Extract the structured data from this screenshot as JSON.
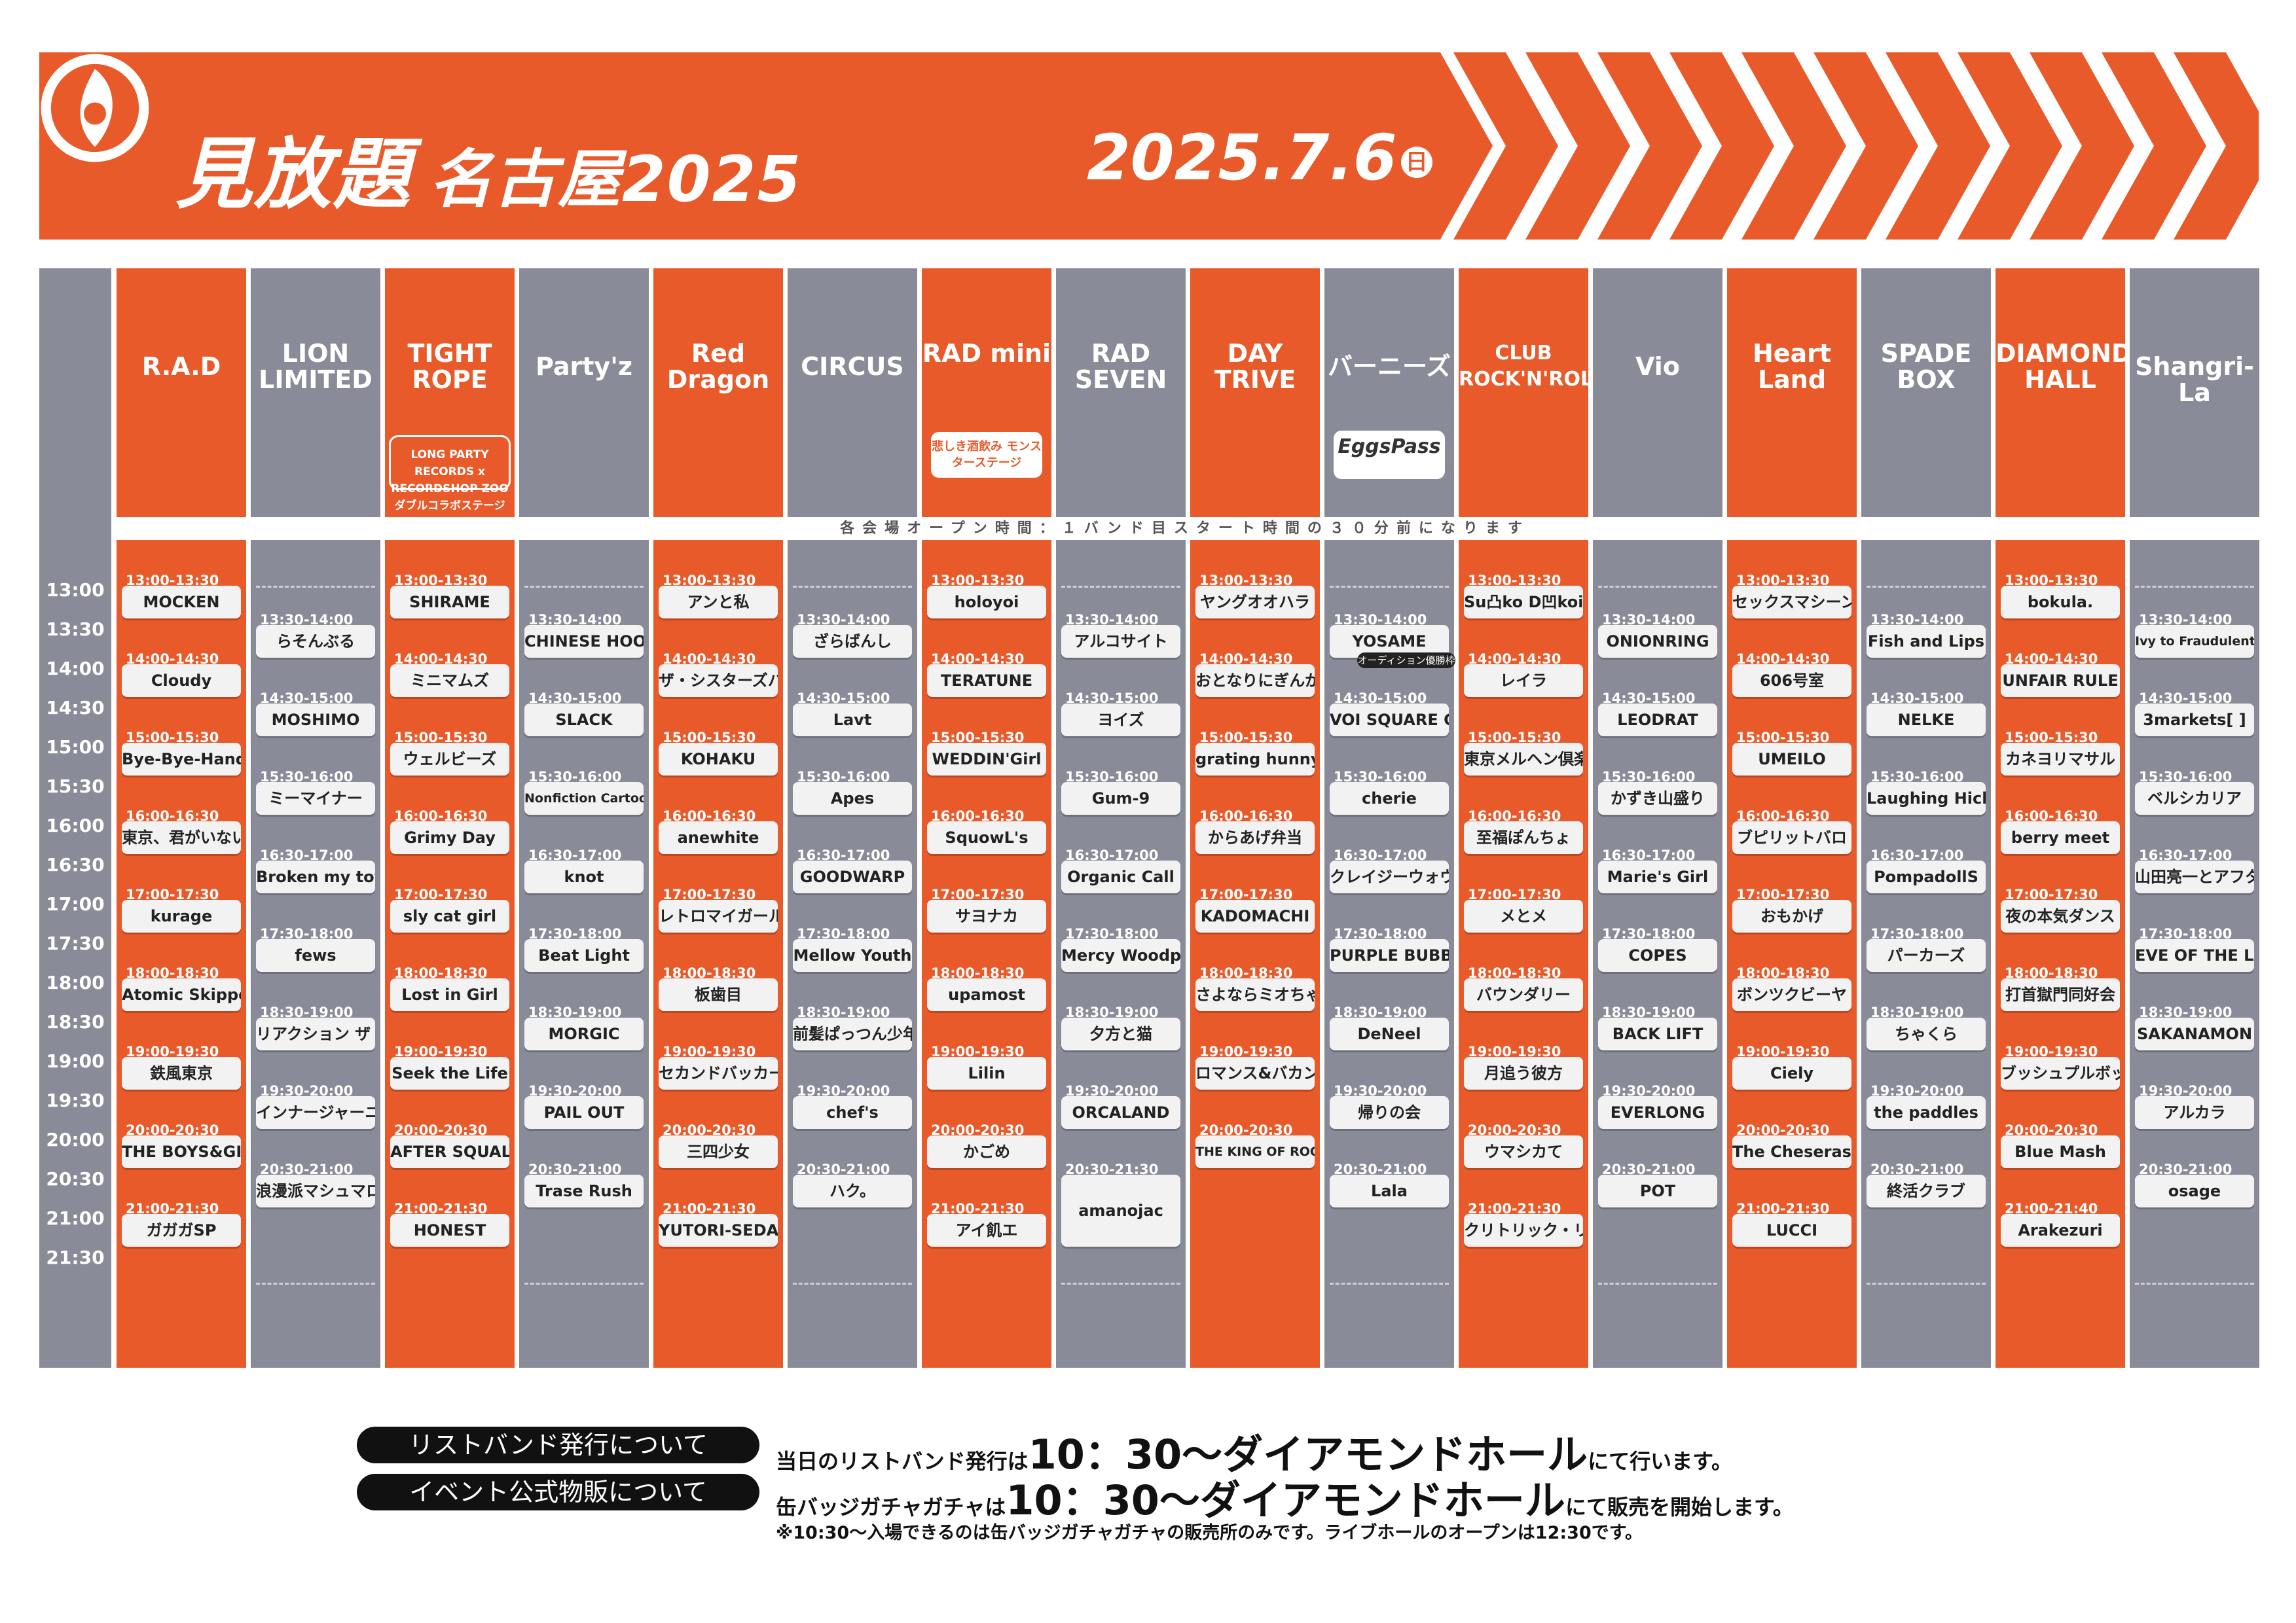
{
  "header": {
    "title": "見放題",
    "subtitle": "名古屋2025",
    "date": "2025.7.6",
    "day_of_week": "日",
    "accent": "#e95a2a"
  },
  "notice": "各会場オープン時間：１バンド目スタート時間の３０分前になります",
  "times": [
    "13:00",
    "13:30",
    "14:00",
    "14:30",
    "15:00",
    "15:30",
    "16:00",
    "16:30",
    "17:00",
    "17:30",
    "18:00",
    "18:30",
    "19:00",
    "19:30",
    "20:00",
    "20:30",
    "21:00",
    "21:30"
  ],
  "venues": [
    {
      "name": "R.A.D",
      "color": "orange",
      "sub": "",
      "slots": [
        {
          "time": "13:00-13:30",
          "band": "MOCKEN"
        },
        {
          "time": "14:00-14:30",
          "band": "Cloudy"
        },
        {
          "time": "15:00-15:30",
          "band": "Bye-Bye-Handの方程式"
        },
        {
          "time": "16:00-16:30",
          "band": "東京、君がいない街"
        },
        {
          "time": "17:00-17:30",
          "band": "kurage"
        },
        {
          "time": "18:00-18:30",
          "band": "Atomic Skipper"
        },
        {
          "time": "19:00-19:30",
          "band": "鉄風東京"
        },
        {
          "time": "20:00-20:30",
          "band": "THE BOYS&GIRLS"
        },
        {
          "time": "21:00-21:30",
          "band": "ガガガSP"
        }
      ]
    },
    {
      "name": "LION LIMITED",
      "color": "gray",
      "sub": "",
      "slots": [
        {
          "time": "13:30-14:00",
          "band": "らそんぶる"
        },
        {
          "time": "14:30-15:00",
          "band": "MOSHIMO"
        },
        {
          "time": "15:30-16:00",
          "band": "ミーマイナー"
        },
        {
          "time": "16:30-17:00",
          "band": "Broken my toybox"
        },
        {
          "time": "17:30-18:00",
          "band": "fews"
        },
        {
          "time": "18:30-19:00",
          "band": "リアクション ザ ブッタ"
        },
        {
          "time": "19:30-20:00",
          "band": "インナージャーニー"
        },
        {
          "time": "20:30-21:00",
          "band": "浪漫派マシュマロ"
        }
      ]
    },
    {
      "name": "TIGHT ROPE",
      "color": "orange",
      "sub": "LONG PARTY RECORDS x RECORDSHOP ZOO ダブルコラボステージ",
      "slots": [
        {
          "time": "13:00-13:30",
          "band": "SHIRAME"
        },
        {
          "time": "14:00-14:30",
          "band": "ミニマムズ"
        },
        {
          "time": "15:00-15:30",
          "band": "ウェルビーズ"
        },
        {
          "time": "16:00-16:30",
          "band": "Grimy Day"
        },
        {
          "time": "17:00-17:30",
          "band": "sly cat girl"
        },
        {
          "time": "18:00-18:30",
          "band": "Lost in Girl"
        },
        {
          "time": "19:00-19:30",
          "band": "Seek the Life"
        },
        {
          "time": "20:00-20:30",
          "band": "AFTER SQUALL"
        },
        {
          "time": "21:00-21:30",
          "band": "HONEST"
        }
      ]
    },
    {
      "name": "Party'z",
      "color": "gray",
      "sub": "",
      "slots": [
        {
          "time": "13:30-14:00",
          "band": "CHINESE HOODIE"
        },
        {
          "time": "14:30-15:00",
          "band": "SLACK"
        },
        {
          "time": "15:30-16:00",
          "band": "Nonfiction Cartoons"
        },
        {
          "time": "16:30-17:00",
          "band": "knot"
        },
        {
          "time": "17:30-18:00",
          "band": "Beat Light"
        },
        {
          "time": "18:30-19:00",
          "band": "MORGIC"
        },
        {
          "time": "19:30-20:00",
          "band": "PAIL OUT"
        },
        {
          "time": "20:30-21:00",
          "band": "Trase Rush"
        }
      ]
    },
    {
      "name": "Red Dragon",
      "color": "orange",
      "sub": "",
      "slots": [
        {
          "time": "13:00-13:30",
          "band": "アンと私"
        },
        {
          "time": "14:00-14:30",
          "band": "ザ・シスターズハイ"
        },
        {
          "time": "15:00-15:30",
          "band": "KOHAKU"
        },
        {
          "time": "16:00-16:30",
          "band": "anewhite"
        },
        {
          "time": "17:00-17:30",
          "band": "レトロマイガール！！"
        },
        {
          "time": "18:00-18:30",
          "band": "板歯目"
        },
        {
          "time": "19:00-19:30",
          "band": "セカンドバッカー"
        },
        {
          "time": "20:00-20:30",
          "band": "三四少女"
        },
        {
          "time": "21:00-21:30",
          "band": "YUTORI-SEDAI"
        }
      ]
    },
    {
      "name": "CIRCUS",
      "color": "gray",
      "sub": "",
      "slots": [
        {
          "time": "13:30-14:00",
          "band": "ざらばんし"
        },
        {
          "time": "14:30-15:00",
          "band": "Lavt"
        },
        {
          "time": "15:30-16:00",
          "band": "Apes"
        },
        {
          "time": "16:30-17:00",
          "band": "GOODWARP"
        },
        {
          "time": "17:30-18:00",
          "band": "Mellow Youth"
        },
        {
          "time": "18:30-19:00",
          "band": "前髪ぱっつん少年"
        },
        {
          "time": "19:30-20:00",
          "band": "chef's"
        },
        {
          "time": "20:30-21:00",
          "band": "ハク。"
        }
      ]
    },
    {
      "name": "RAD mini",
      "color": "orange",
      "sub": "悲しき酒飲み モンスターステージ",
      "slots": [
        {
          "time": "13:00-13:30",
          "band": "holoyoi"
        },
        {
          "time": "14:00-14:30",
          "band": "TERATUNE"
        },
        {
          "time": "15:00-15:30",
          "band": "WEDDIN'Girl"
        },
        {
          "time": "16:00-16:30",
          "band": "SquowL's"
        },
        {
          "time": "17:00-17:30",
          "band": "サヨナカ"
        },
        {
          "time": "18:00-18:30",
          "band": "upamost"
        },
        {
          "time": "19:00-19:30",
          "band": "Lilin"
        },
        {
          "time": "20:00-20:30",
          "band": "かごめ"
        },
        {
          "time": "21:00-21:30",
          "band": "アイ飢エ"
        }
      ]
    },
    {
      "name": "RAD SEVEN",
      "color": "gray",
      "sub": "",
      "slots": [
        {
          "time": "13:30-14:00",
          "band": "アルコサイト"
        },
        {
          "time": "14:30-15:00",
          "band": "ヨイズ"
        },
        {
          "time": "15:30-16:00",
          "band": "Gum-9"
        },
        {
          "time": "16:30-17:00",
          "band": "Organic Call"
        },
        {
          "time": "17:30-18:00",
          "band": "Mercy Woodpecker"
        },
        {
          "time": "18:30-19:00",
          "band": "夕方と猫"
        },
        {
          "time": "19:30-20:00",
          "band": "ORCALAND"
        },
        {
          "time": "20:30-21:30",
          "band": "amanojac"
        }
      ]
    },
    {
      "name": "DAY TRIVE",
      "color": "orange",
      "sub": "",
      "slots": [
        {
          "time": "13:00-13:30",
          "band": "ヤングオオハラ"
        },
        {
          "time": "14:00-14:30",
          "band": "おとなりにぎんが計画"
        },
        {
          "time": "15:00-15:30",
          "band": "grating hunny"
        },
        {
          "time": "16:00-16:30",
          "band": "からあげ弁当"
        },
        {
          "time": "17:00-17:30",
          "band": "KADOMACHI"
        },
        {
          "time": "18:00-18:30",
          "band": "さよならミオちゃん"
        },
        {
          "time": "19:00-19:30",
          "band": "ロマンス&バカンス"
        },
        {
          "time": "20:00-20:30",
          "band": "THE KING OF ROOKIE"
        }
      ]
    },
    {
      "name": "バーニーズ",
      "color": "gray",
      "sub": "EggsPass",
      "slots": [
        {
          "time": "13:30-14:00",
          "band": "YOSAME"
        },
        {
          "time": "14:30-15:00",
          "band": "VOI SQUARE CAT"
        },
        {
          "time": "15:30-16:00",
          "band": "cherie"
        },
        {
          "time": "16:30-17:00",
          "band": "クレイジーウォウウォ！！"
        },
        {
          "time": "17:30-18:00",
          "band": "PURPLE BUBBLE"
        },
        {
          "time": "18:30-19:00",
          "band": "DeNeel"
        },
        {
          "time": "19:30-20:00",
          "band": "帰りの会"
        },
        {
          "time": "20:30-21:00",
          "band": "Lala"
        }
      ]
    },
    {
      "name": "CLUB ROCK'N'ROLL",
      "color": "orange",
      "sub": "",
      "slots": [
        {
          "time": "13:00-13:30",
          "band": "Su凸ko D凹koi"
        },
        {
          "time": "14:00-14:30",
          "band": "レイラ"
        },
        {
          "time": "15:00-15:30",
          "band": "東京メルヘン倶楽部"
        },
        {
          "time": "16:00-16:30",
          "band": "至福ぽんちょ"
        },
        {
          "time": "17:00-17:30",
          "band": "メとメ"
        },
        {
          "time": "18:00-18:30",
          "band": "バウンダリー"
        },
        {
          "time": "19:00-19:30",
          "band": "月追う彼方"
        },
        {
          "time": "20:00-20:30",
          "band": "ウマシカて"
        },
        {
          "time": "21:00-21:30",
          "band": "クリトリック・リス"
        }
      ]
    },
    {
      "name": "Vio",
      "color": "gray",
      "sub": "",
      "slots": [
        {
          "time": "13:30-14:00",
          "band": "ONIONRING"
        },
        {
          "time": "14:30-15:00",
          "band": "LEODRAT"
        },
        {
          "time": "15:30-16:00",
          "band": "かずき山盛り"
        },
        {
          "time": "16:30-17:00",
          "band": "Marie's Girl"
        },
        {
          "time": "17:30-18:00",
          "band": "COPES"
        },
        {
          "time": "18:30-19:00",
          "band": "BACK LIFT"
        },
        {
          "time": "19:30-20:00",
          "band": "EVERLONG"
        },
        {
          "time": "20:30-21:00",
          "band": "POT"
        }
      ]
    },
    {
      "name": "Heart Land",
      "color": "orange",
      "sub": "",
      "slots": [
        {
          "time": "13:00-13:30",
          "band": "セックスマシーン！！"
        },
        {
          "time": "14:00-14:30",
          "band": "606号室"
        },
        {
          "time": "15:00-15:30",
          "band": "UMEILO"
        },
        {
          "time": "16:00-16:30",
          "band": "ブピリットバロ"
        },
        {
          "time": "17:00-17:30",
          "band": "おもかげ"
        },
        {
          "time": "18:00-18:30",
          "band": "ボンツクビーヤ"
        },
        {
          "time": "19:00-19:30",
          "band": "Ciely"
        },
        {
          "time": "20:00-20:30",
          "band": "The Cheserasera"
        },
        {
          "time": "21:00-21:30",
          "band": "LUCCI"
        }
      ]
    },
    {
      "name": "SPADE BOX",
      "color": "gray",
      "sub": "",
      "slots": [
        {
          "time": "13:30-14:00",
          "band": "Fish and Lips"
        },
        {
          "time": "14:30-15:00",
          "band": "NELKE"
        },
        {
          "time": "15:30-16:00",
          "band": "Laughing Hick"
        },
        {
          "time": "16:30-17:00",
          "band": "PompadollS"
        },
        {
          "time": "17:30-18:00",
          "band": "パーカーズ"
        },
        {
          "time": "18:30-19:00",
          "band": "ちゃくら"
        },
        {
          "time": "19:30-20:00",
          "band": "the paddles"
        },
        {
          "time": "20:30-21:00",
          "band": "終活クラブ"
        }
      ]
    },
    {
      "name": "DIAMOND HALL",
      "color": "orange",
      "sub": "",
      "slots": [
        {
          "time": "13:00-13:30",
          "band": "bokula."
        },
        {
          "time": "14:00-14:30",
          "band": "UNFAIR RULE"
        },
        {
          "time": "15:00-15:30",
          "band": "カネヨリマサル"
        },
        {
          "time": "16:00-16:30",
          "band": "berry meet"
        },
        {
          "time": "17:00-17:30",
          "band": "夜の本気ダンス"
        },
        {
          "time": "18:00-18:30",
          "band": "打首獄門同好会"
        },
        {
          "time": "19:00-19:30",
          "band": "ブッシュプルボット"
        },
        {
          "time": "20:00-20:30",
          "band": "Blue Mash"
        },
        {
          "time": "21:00-21:40",
          "band": "Arakezuri"
        }
      ]
    },
    {
      "name": "Shangri-La",
      "color": "gray",
      "sub": "",
      "slots": [
        {
          "time": "13:30-14:00",
          "band": "Ivy to Fraudulent Game"
        },
        {
          "time": "14:30-15:00",
          "band": "3markets[ ]"
        },
        {
          "time": "15:30-16:00",
          "band": "ベルシカリア"
        },
        {
          "time": "16:30-17:00",
          "band": "山田亮一とアフターソウル"
        },
        {
          "time": "17:30-18:00",
          "band": "EVE OF THE LAIN"
        },
        {
          "time": "18:30-19:00",
          "band": "SAKANAMON"
        },
        {
          "time": "19:30-20:00",
          "band": "アルカラ"
        },
        {
          "time": "20:30-21:00",
          "band": "osage"
        }
      ]
    }
  ],
  "badge_text": "オーディション優勝枠",
  "info": {
    "wristband_label": "リストバンド発行について",
    "wristband_pre": "当日のリストバンド発行は",
    "wristband_big": "10：30～ダイアモンドホール",
    "wristband_post": "にて行います。",
    "goods_label": "イベント公式物販について",
    "goods_pre": "缶バッジガチャガチャは",
    "goods_big": "10：30～ダイアモンドホール",
    "goods_post": "にて販売を開始します。",
    "note": "※10:30～入場できるのは缶バッジガチャガチャの販売所のみです。ライブホールのオープンは12:30です。"
  }
}
